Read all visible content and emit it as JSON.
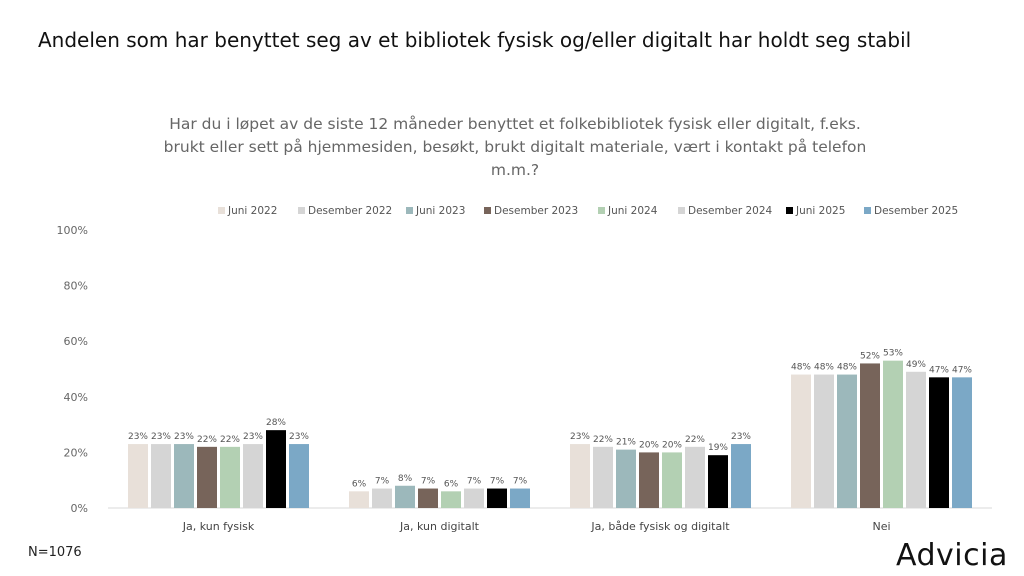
{
  "title": "Andelen som har benyttet seg av et bibliotek fysisk og/eller digitalt har holdt seg stabil",
  "footer": {
    "n": "N=1076",
    "brand": "Advicia"
  },
  "chart_data": {
    "type": "bar",
    "title": "Har du i løpet av de siste 12 måneder benyttet et folkebibliotek fysisk eller digitalt, f.eks. brukt eller sett på hjemmesiden, besøkt, brukt digitalt materiale, vært i kontakt på telefon m.m.?",
    "categories": [
      "Ja, kun fysisk",
      "Ja, kun digitalt",
      "Ja, både fysisk og digitalt",
      "Nei"
    ],
    "ylim": [
      0,
      100
    ],
    "yticks": [
      "0%",
      "20%",
      "40%",
      "60%",
      "80%",
      "100%"
    ],
    "legend_position": "top",
    "series": [
      {
        "name": "Juni 2022",
        "color": "#e8e0d9",
        "values": [
          23,
          6,
          23,
          48
        ]
      },
      {
        "name": "Desember 2022",
        "color": "#d5d5d5",
        "values": [
          23,
          7,
          22,
          48
        ]
      },
      {
        "name": "Juni 2023",
        "color": "#9cb8bb",
        "values": [
          23,
          8,
          21,
          48
        ]
      },
      {
        "name": "Desember 2023",
        "color": "#77645a",
        "values": [
          22,
          7,
          20,
          52
        ]
      },
      {
        "name": "Juni 2024",
        "color": "#b3d0b3",
        "values": [
          22,
          6,
          20,
          53
        ]
      },
      {
        "name": "Desember 2024",
        "color": "#d5d5d5",
        "values": [
          23,
          7,
          22,
          49
        ]
      },
      {
        "name": "Juni 2025",
        "color": "#000000",
        "values": [
          28,
          7,
          19,
          47
        ]
      },
      {
        "name": "Desember 2025",
        "color": "#7ba8c6",
        "values": [
          23,
          7,
          23,
          47
        ]
      }
    ]
  }
}
